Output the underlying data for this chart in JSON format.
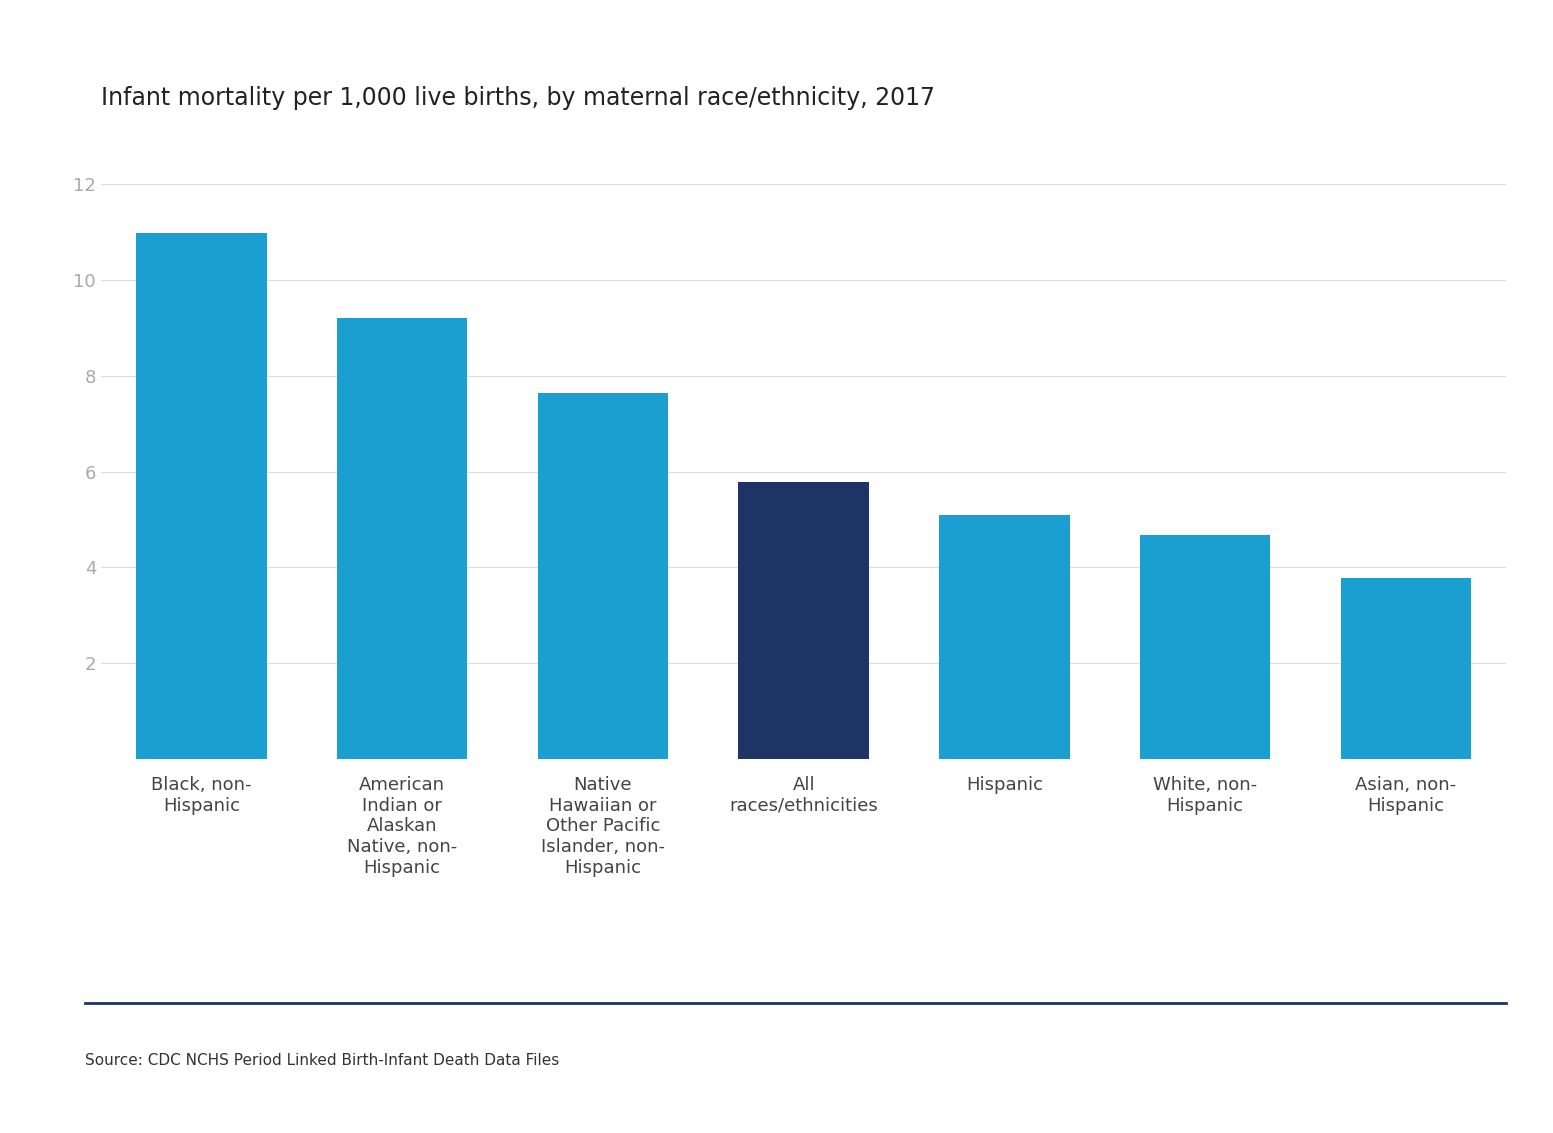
{
  "title": "Infant mortality per 1,000 live births, by maternal race/ethnicity, 2017",
  "categories": [
    "Black, non-\nHispanic",
    "American\nIndian or\nAlaskan\nNative, non-\nHispanic",
    "Native\nHawaiian or\nOther Pacific\nIslander, non-\nHispanic",
    "All\nraces/ethnicities",
    "Hispanic",
    "White, non-\nHispanic",
    "Asian, non-\nHispanic"
  ],
  "values": [
    10.97,
    9.21,
    7.63,
    5.79,
    5.1,
    4.67,
    3.78
  ],
  "bar_colors": [
    "#1a9fd0",
    "#1a9fd0",
    "#1a9fd0",
    "#1e3465",
    "#1a9fd0",
    "#1a9fd0",
    "#1a9fd0"
  ],
  "ylim": [
    0,
    13
  ],
  "yticks": [
    0,
    2,
    4,
    6,
    8,
    10,
    12
  ],
  "ylabel": "",
  "xlabel": "",
  "source_text": "Source: CDC NCHS Period Linked Birth-Infant Death Data Files",
  "background_color": "#ffffff",
  "title_fontsize": 17,
  "tick_fontsize": 13,
  "source_fontsize": 11,
  "bar_width": 0.65,
  "separator_color": "#1e3465",
  "ytick_color": "#aaaaaa",
  "xtick_color": "#444444",
  "gridline_color": "#dddddd"
}
